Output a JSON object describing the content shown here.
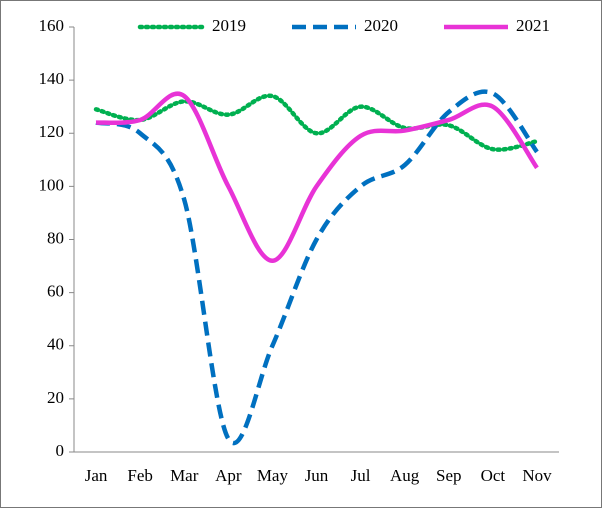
{
  "chart_data": {
    "type": "line",
    "categories": [
      "Jan",
      "Feb",
      "Mar",
      "Apr",
      "May",
      "Jun",
      "Jul",
      "Aug",
      "Sep",
      "Oct",
      "Nov"
    ],
    "series": [
      {
        "name": "2019",
        "color": "#00b050",
        "dash": "dotted",
        "values": [
          129,
          125,
          132,
          127,
          134,
          120,
          130,
          122,
          123,
          114,
          117
        ]
      },
      {
        "name": "2020",
        "color": "#0070c0",
        "dash": "dashed",
        "values": [
          124,
          120,
          95,
          5,
          40,
          80,
          100,
          108,
          128,
          135,
          113
        ]
      },
      {
        "name": "2021",
        "color": "#e833d6",
        "dash": "solid",
        "values": [
          124,
          125,
          134,
          100,
          72,
          100,
          119,
          121,
          125,
          130,
          107
        ]
      }
    ],
    "ylim": [
      0,
      160
    ],
    "yticks": [
      0,
      20,
      40,
      60,
      80,
      100,
      120,
      140,
      160
    ],
    "smooth": true,
    "legend": "top"
  }
}
